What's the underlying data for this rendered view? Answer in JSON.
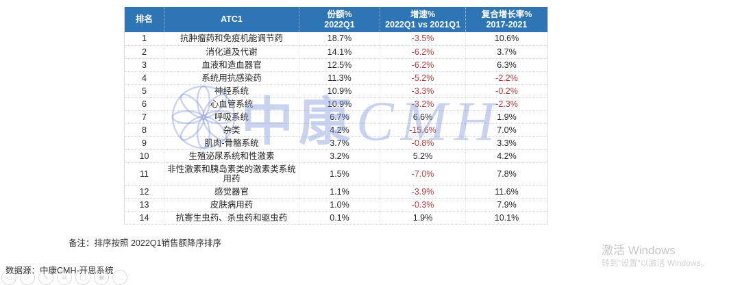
{
  "table": {
    "headers": [
      {
        "label": "排名",
        "sub": ""
      },
      {
        "label": "ATC1",
        "sub": ""
      },
      {
        "label": "份额%",
        "sub": "2022Q1"
      },
      {
        "label": "增速%",
        "sub": "2022Q1 vs 2021Q1"
      },
      {
        "label": "复合增长率%",
        "sub": "2017-2021"
      }
    ],
    "rows": [
      {
        "rank": "1",
        "atc1": "抗肿瘤药和免疫机能调节药",
        "share": "18.7%",
        "growth": "-3.5%",
        "cagr": "10.6%"
      },
      {
        "rank": "2",
        "atc1": "消化道及代谢",
        "share": "14.1%",
        "growth": "-6.2%",
        "cagr": "3.7%"
      },
      {
        "rank": "3",
        "atc1": "血液和造血器官",
        "share": "12.5%",
        "growth": "-6.2%",
        "cagr": "6.3%"
      },
      {
        "rank": "4",
        "atc1": "系统用抗感染药",
        "share": "11.3%",
        "growth": "-5.2%",
        "cagr": "-2.2%"
      },
      {
        "rank": "5",
        "atc1": "神经系统",
        "share": "10.9%",
        "growth": "-3.3%",
        "cagr": "-0.2%"
      },
      {
        "rank": "6",
        "atc1": "心血管系统",
        "share": "10.9%",
        "growth": "-3.2%",
        "cagr": "-2.3%"
      },
      {
        "rank": "7",
        "atc1": "呼吸系统",
        "share": "6.7%",
        "growth": "6.6%",
        "cagr": "1.9%"
      },
      {
        "rank": "8",
        "atc1": "杂类",
        "share": "4.2%",
        "growth": "-15.6%",
        "cagr": "7.0%"
      },
      {
        "rank": "9",
        "atc1": "肌肉-骨骼系统",
        "share": "3.7%",
        "growth": "-0.8%",
        "cagr": "3.3%"
      },
      {
        "rank": "10",
        "atc1": "生殖泌尿系统和性激素",
        "share": "3.2%",
        "growth": "5.2%",
        "cagr": "4.2%"
      },
      {
        "rank": "11",
        "atc1": "非性激素和胰岛素类的激素类系统用药",
        "share": "1.5%",
        "growth": "-7.0%",
        "cagr": "7.8%"
      },
      {
        "rank": "12",
        "atc1": "感觉器官",
        "share": "1.1%",
        "growth": "-3.9%",
        "cagr": "11.6%"
      },
      {
        "rank": "13",
        "atc1": "皮肤病用药",
        "share": "1.0%",
        "growth": "-0.3%",
        "cagr": "7.9%"
      },
      {
        "rank": "14",
        "atc1": "抗寄生虫药、杀虫药和驱虫药",
        "share": "0.1%",
        "growth": "1.9%",
        "cagr": "10.1%"
      }
    ]
  },
  "notes": {
    "remark": "备注：排序按照 2022Q1销售额降序排序",
    "source": "数据源：中康CMH-开思系统"
  },
  "watermark": {
    "logo": "snowflake-logo",
    "text_cn": "中康",
    "text_en": "CMH"
  },
  "windows_activation": {
    "line1": "激活 Windows",
    "line2": "转到\"设置\"以激活 Windows。"
  },
  "float_icons": [
    {
      "name": "nav-back-icon",
      "glyph": "◁"
    },
    {
      "name": "play-icon",
      "glyph": "▷"
    },
    {
      "name": "edit-icon",
      "glyph": "✎"
    },
    {
      "name": "copy-icon",
      "glyph": "⧉"
    },
    {
      "name": "stop-icon",
      "glyph": "▢"
    },
    {
      "name": "save-icon",
      "glyph": "▣"
    },
    {
      "name": "more-icon",
      "glyph": "…"
    }
  ],
  "colors": {
    "header_blue": "#2e75b6",
    "negative_red": "#c0393b",
    "watermark_blue": "#7e94d8",
    "text_dark": "#262626"
  }
}
